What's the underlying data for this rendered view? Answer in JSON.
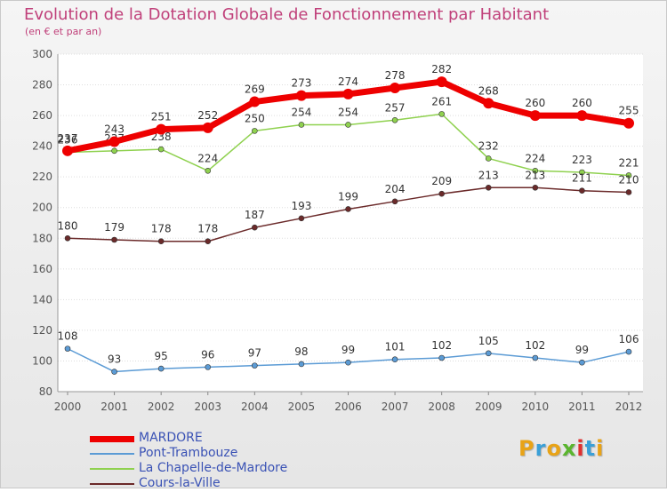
{
  "chart_data": {
    "type": "line",
    "title": "Evolution de la Dotation Globale de Fonctionnement par Habitant",
    "subtitle": "(en € et par an)",
    "xlabel": "",
    "ylabel": "",
    "x": [
      "2000",
      "2001",
      "2002",
      "2003",
      "2004",
      "2005",
      "2006",
      "2007",
      "2008",
      "2009",
      "2010",
      "2011",
      "2012"
    ],
    "ylim": [
      80,
      300
    ],
    "yticks": [
      80,
      100,
      120,
      140,
      160,
      180,
      200,
      220,
      240,
      260,
      280,
      300
    ],
    "grid": "horizontal",
    "legend_position": "bottom-left",
    "series": [
      {
        "name": "MARDORE",
        "color": "#ee0000",
        "values": [
          237,
          243,
          251,
          252,
          269,
          273,
          274,
          278,
          282,
          268,
          260,
          260,
          255
        ]
      },
      {
        "name": "Pont-Trambouze",
        "color": "#5b9bd5",
        "values": [
          108,
          93,
          95,
          96,
          97,
          98,
          99,
          101,
          102,
          105,
          102,
          99,
          106
        ]
      },
      {
        "name": "La Chapelle-de-Mardore",
        "color": "#8fd14f",
        "values": [
          236,
          237,
          238,
          224,
          250,
          254,
          254,
          257,
          261,
          232,
          224,
          223,
          221
        ]
      },
      {
        "name": "Cours-la-Ville",
        "color": "#6b2a2a",
        "values": [
          180,
          179,
          178,
          178,
          187,
          193,
          199,
          204,
          209,
          213,
          213,
          211,
          210
        ]
      }
    ]
  },
  "logo": {
    "letters": [
      {
        "ch": "P",
        "color": "#e8a317"
      },
      {
        "ch": "r",
        "color": "#3aa0d8"
      },
      {
        "ch": "o",
        "color": "#e8a317"
      },
      {
        "ch": "x",
        "color": "#5ab52e"
      },
      {
        "ch": "i",
        "color": "#e03030"
      },
      {
        "ch": "t",
        "color": "#3aa0d8"
      },
      {
        "ch": "i",
        "color": "#e8a317"
      }
    ]
  }
}
